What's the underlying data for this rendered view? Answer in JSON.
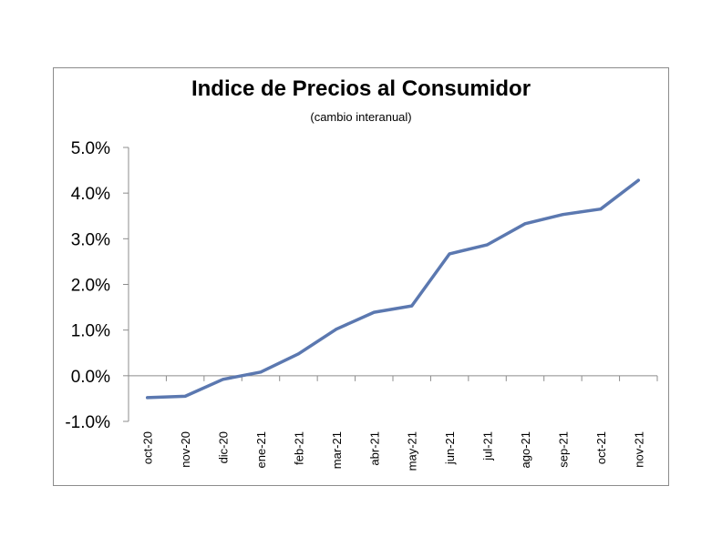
{
  "chart_data": {
    "type": "line",
    "title": "Indice de Precios al Consumidor",
    "subtitle": "(cambio interanual)",
    "xlabel": "",
    "ylabel": "",
    "ylim": [
      -1.0,
      5.0
    ],
    "y_ticks": [
      "-1.0%",
      "0.0%",
      "1.0%",
      "2.0%",
      "3.0%",
      "4.0%",
      "5.0%"
    ],
    "categories": [
      "oct-20",
      "nov-20",
      "dic-20",
      "ene-21",
      "feb-21",
      "mar-21",
      "abr-21",
      "may-21",
      "jun-21",
      "jul-21",
      "ago-21",
      "sep-21",
      "oct-21",
      "nov-21"
    ],
    "series": [
      {
        "values": [
          -0.48,
          -0.45,
          -0.08,
          0.08,
          0.48,
          1.02,
          1.39,
          1.53,
          2.67,
          2.87,
          3.33,
          3.53,
          3.65,
          4.28
        ],
        "color": "#5b78b0"
      }
    ],
    "grid": false,
    "legend": "none"
  }
}
